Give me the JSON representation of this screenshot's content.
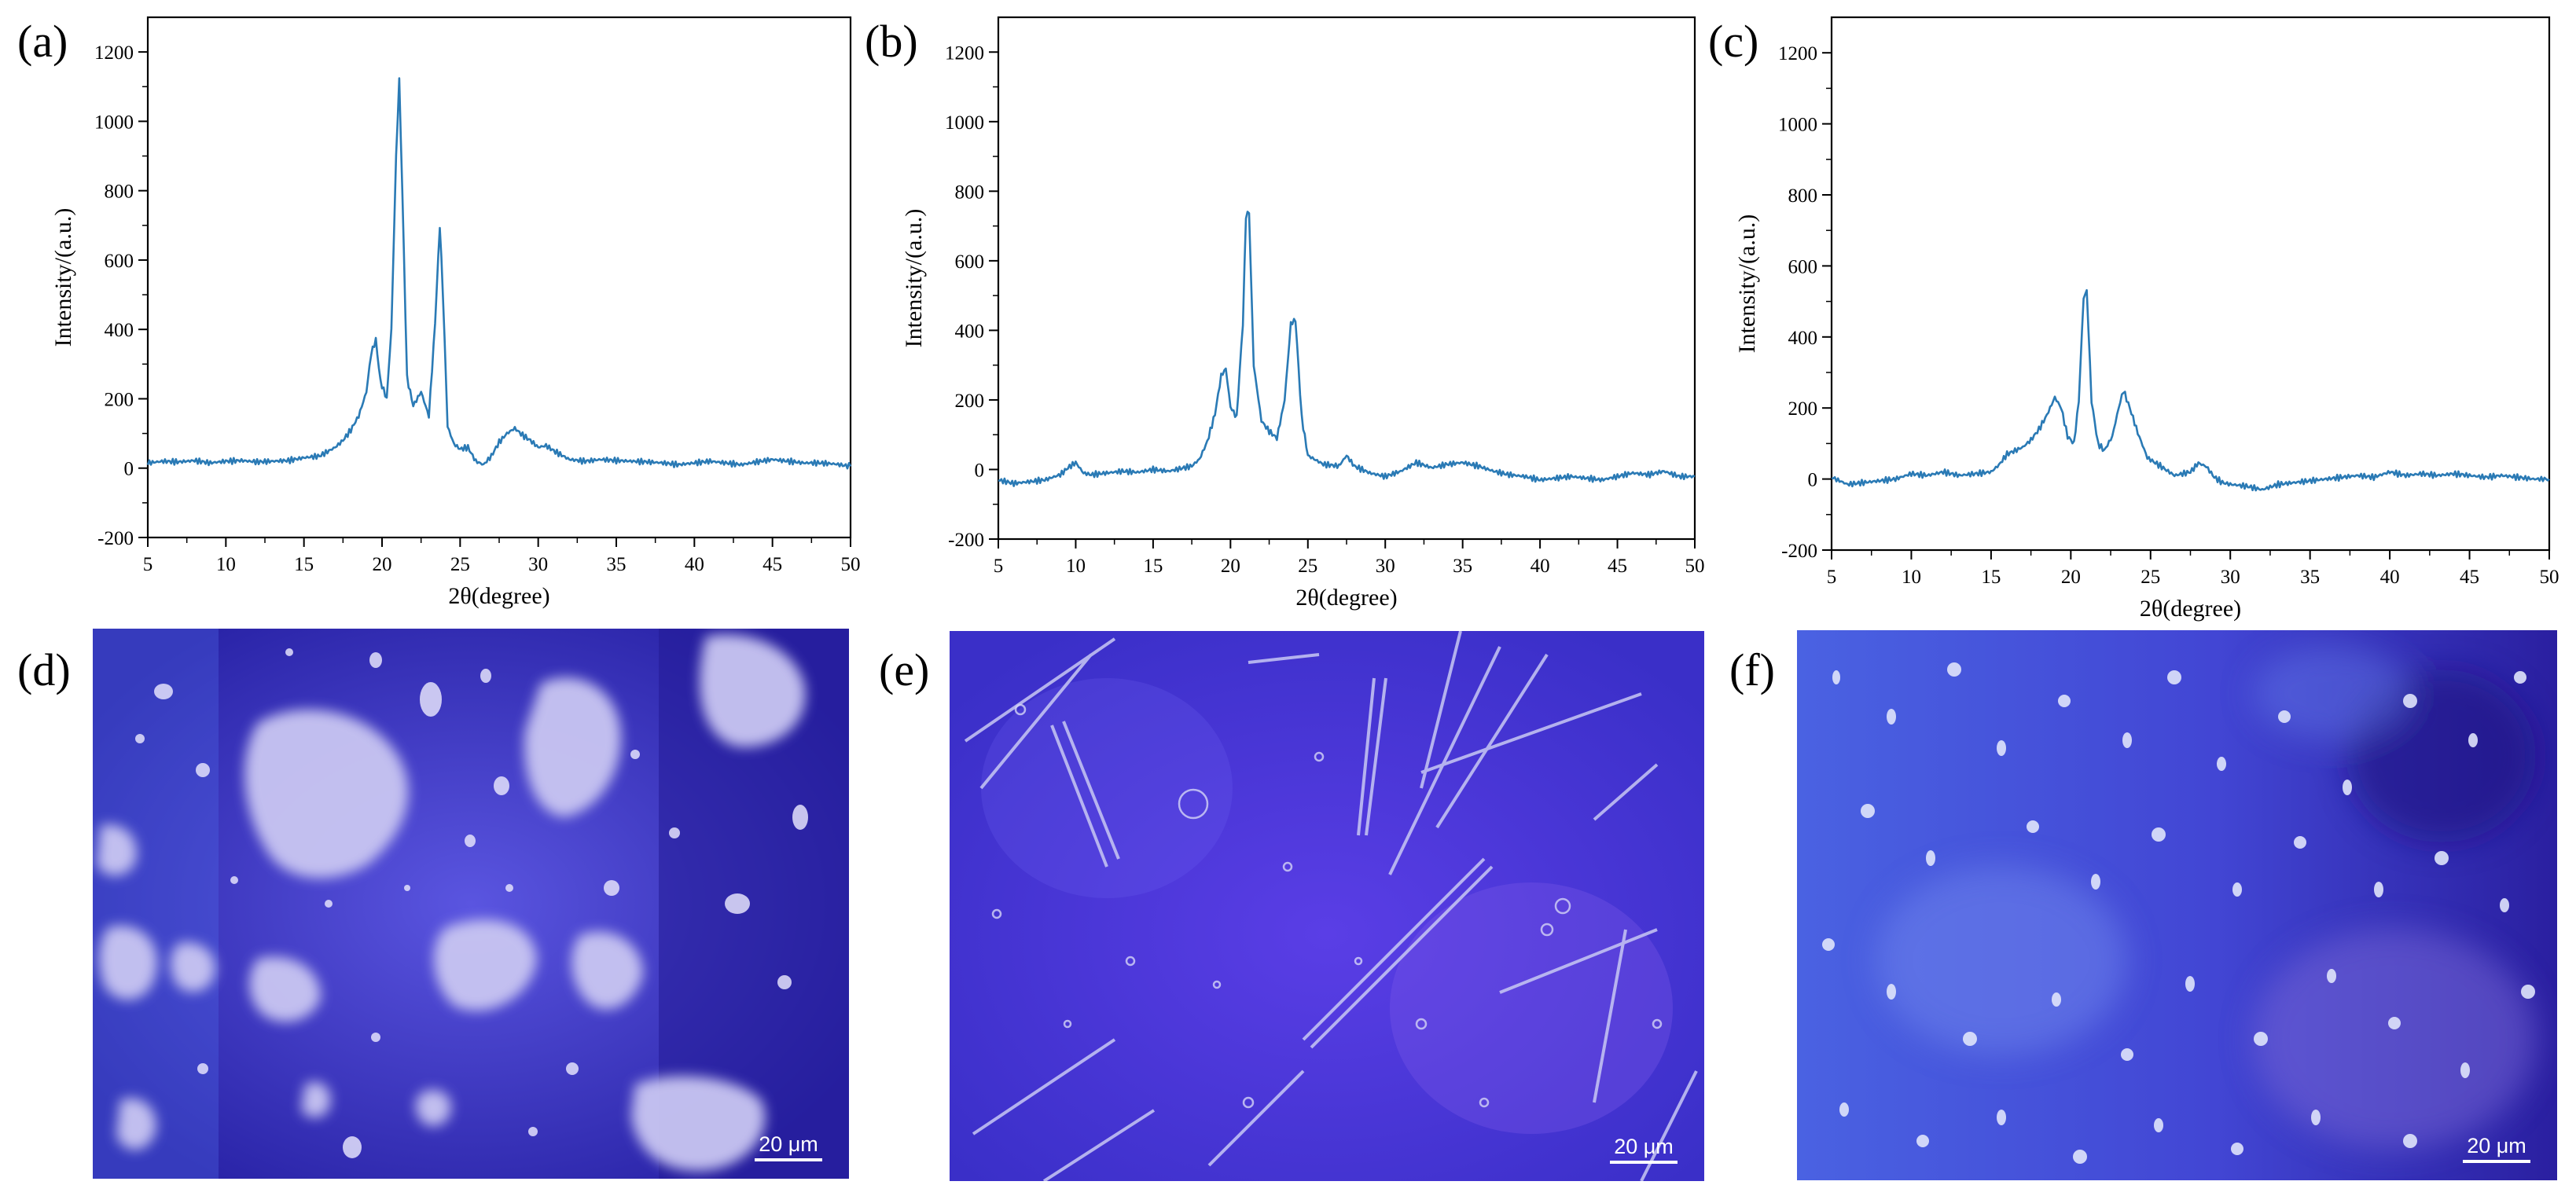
{
  "panels": {
    "a": "(a)",
    "b": "(b)",
    "c": "(c)",
    "d": "(d)",
    "e": "(e)",
    "f": "(f)"
  },
  "colors": {
    "line": "#2a7ab5",
    "bg_d": "#3b35c4",
    "bg_e": "#3b2ed8",
    "bg_f": "#3f43cf"
  },
  "chart_data": [
    {
      "id": "a",
      "type": "line",
      "title": "",
      "xlabel": "2θ(degree)",
      "ylabel": "Intensity/(a.u.)",
      "xlim": [
        5,
        50
      ],
      "ylim": [
        -200,
        1300
      ],
      "xticks": [
        5,
        10,
        15,
        20,
        25,
        30,
        35,
        40,
        45,
        50
      ],
      "yticks": [
        -200,
        0,
        200,
        400,
        600,
        800,
        1000,
        1200
      ],
      "x": [
        5,
        6,
        7,
        8,
        9,
        10,
        11,
        12,
        13,
        14,
        15,
        16,
        17,
        17.5,
        18,
        18.5,
        19,
        19.3,
        19.6,
        19.9,
        20.3,
        20.6,
        20.9,
        21.1,
        21.3,
        21.6,
        22.0,
        22.5,
        23.0,
        23.4,
        23.7,
        23.9,
        24.2,
        24.6,
        25.0,
        25.5,
        26.0,
        26.5,
        27.0,
        27.5,
        28.0,
        28.5,
        29.0,
        29.5,
        30.0,
        30.5,
        31.0,
        32,
        33,
        34,
        35,
        36,
        37,
        38,
        39,
        40,
        41,
        42,
        43,
        44,
        45,
        46,
        47,
        48,
        49,
        50
      ],
      "y": [
        15,
        20,
        18,
        22,
        15,
        20,
        22,
        18,
        20,
        22,
        30,
        35,
        60,
        80,
        110,
        150,
        220,
        330,
        370,
        250,
        200,
        400,
        900,
        1120,
        800,
        260,
        180,
        220,
        150,
        420,
        700,
        500,
        120,
        70,
        55,
        60,
        20,
        10,
        35,
        75,
        100,
        115,
        95,
        80,
        60,
        65,
        50,
        25,
        20,
        25,
        22,
        20,
        18,
        15,
        10,
        15,
        20,
        15,
        10,
        18,
        25,
        20,
        15,
        15,
        12,
        5
      ]
    },
    {
      "id": "b",
      "type": "line",
      "title": "",
      "xlabel": "2θ(degree)",
      "ylabel": "Intensity/(a.u.)",
      "xlim": [
        5,
        50
      ],
      "ylim": [
        -200,
        1300
      ],
      "xticks": [
        5,
        10,
        15,
        20,
        25,
        30,
        35,
        40,
        45,
        50
      ],
      "yticks": [
        -200,
        0,
        200,
        400,
        600,
        800,
        1000,
        1200
      ],
      "x": [
        5,
        6,
        7,
        8,
        9,
        9.5,
        10,
        10.5,
        11,
        12,
        13,
        14,
        15,
        16,
        17,
        17.5,
        18,
        18.5,
        19,
        19.4,
        19.7,
        20.0,
        20.4,
        20.8,
        21.0,
        21.2,
        21.5,
        22.0,
        22.5,
        23.0,
        23.5,
        23.9,
        24.2,
        24.6,
        25.0,
        26.0,
        27.0,
        27.5,
        28.0,
        29,
        30,
        31,
        32,
        33,
        34,
        35,
        36,
        37,
        38,
        39,
        40,
        41,
        42,
        43,
        44,
        45,
        46,
        47,
        48,
        49,
        50
      ],
      "y": [
        -30,
        -40,
        -35,
        -30,
        -15,
        5,
        20,
        -10,
        -15,
        -10,
        -5,
        -8,
        0,
        -5,
        5,
        10,
        30,
        80,
        160,
        270,
        290,
        180,
        150,
        420,
        730,
        740,
        300,
        140,
        110,
        90,
        200,
        420,
        430,
        150,
        40,
        15,
        10,
        40,
        10,
        -10,
        -20,
        -5,
        20,
        5,
        15,
        20,
        10,
        -5,
        -15,
        -20,
        -30,
        -25,
        -20,
        -25,
        -30,
        -20,
        -10,
        -15,
        -5,
        -20,
        -20
      ]
    },
    {
      "id": "c",
      "type": "line",
      "title": "",
      "xlabel": "2θ(degree)",
      "ylabel": "Intensity/(a.u.)",
      "xlim": [
        5,
        50
      ],
      "ylim": [
        -200,
        1300
      ],
      "xticks": [
        5,
        10,
        15,
        20,
        25,
        30,
        35,
        40,
        45,
        50
      ],
      "yticks": [
        -200,
        0,
        200,
        400,
        600,
        800,
        1000,
        1200
      ],
      "x": [
        5,
        6,
        7,
        8,
        9,
        10,
        11,
        12,
        13,
        14,
        15,
        15.5,
        16,
        16.5,
        17,
        17.5,
        18,
        18.5,
        19.0,
        19.4,
        19.8,
        20.2,
        20.5,
        20.8,
        21.0,
        21.3,
        21.7,
        22.1,
        22.6,
        23.0,
        23.3,
        23.7,
        24.2,
        24.8,
        25.5,
        26.5,
        27.5,
        28.0,
        28.5,
        29.0,
        29.5,
        30.0,
        31,
        32,
        33,
        34,
        35,
        36,
        37,
        38,
        39,
        40,
        41,
        42,
        43,
        44,
        45,
        46,
        47,
        48,
        49,
        50
      ],
      "y": [
        5,
        -15,
        -10,
        -5,
        0,
        15,
        10,
        20,
        10,
        15,
        20,
        40,
        70,
        80,
        90,
        110,
        140,
        180,
        230,
        200,
        120,
        100,
        220,
        510,
        530,
        220,
        100,
        80,
        120,
        200,
        250,
        200,
        130,
        60,
        40,
        10,
        20,
        45,
        35,
        5,
        -10,
        -15,
        -20,
        -30,
        -15,
        -10,
        -5,
        0,
        5,
        10,
        5,
        20,
        10,
        15,
        10,
        15,
        10,
        5,
        10,
        5,
        0,
        0
      ]
    }
  ],
  "micrographs": [
    {
      "id": "d",
      "scale": "20 μm"
    },
    {
      "id": "e",
      "scale": "20 μm"
    },
    {
      "id": "f",
      "scale": "20 μm"
    }
  ]
}
